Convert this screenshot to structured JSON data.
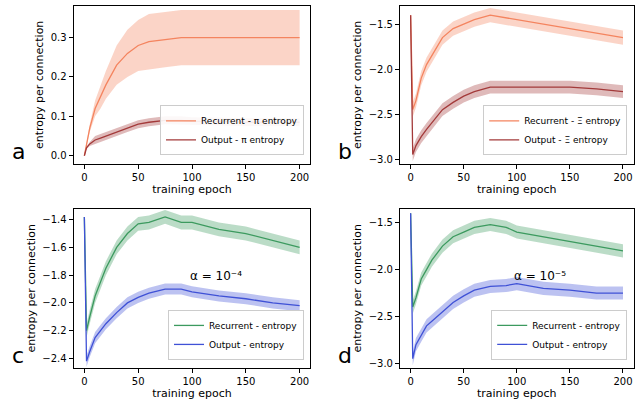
{
  "chart_data": [
    {
      "type": "line",
      "panel": "a",
      "xlabel": "training epoch",
      "ylabel": "entropy per connection",
      "x": [
        0,
        2,
        5,
        10,
        15,
        20,
        30,
        40,
        50,
        60,
        75,
        90,
        100,
        125,
        150,
        175,
        200
      ],
      "xlim": [
        -10,
        210
      ],
      "xticks": [
        0,
        50,
        100,
        150,
        200
      ],
      "ylim": [
        -0.02,
        0.38
      ],
      "yticks": [
        {
          "value": 0,
          "label": "0.0"
        },
        0.1,
        0.2,
        0.3
      ],
      "legend": "lower right",
      "series": [
        {
          "name": "Recurrent - π entropy",
          "color": "#f4845f",
          "values": [
            0,
            0.03,
            0.07,
            0.12,
            0.15,
            0.18,
            0.23,
            0.26,
            0.28,
            0.29,
            0.295,
            0.3,
            0.3,
            0.3,
            0.3,
            0.3,
            0.3
          ],
          "lower": [
            0,
            0.025,
            0.06,
            0.1,
            0.12,
            0.145,
            0.18,
            0.2,
            0.215,
            0.22,
            0.225,
            0.23,
            0.23,
            0.23,
            0.23,
            0.23,
            0.23
          ],
          "upper": [
            0,
            0.035,
            0.08,
            0.14,
            0.18,
            0.215,
            0.28,
            0.32,
            0.345,
            0.36,
            0.365,
            0.37,
            0.37,
            0.37,
            0.37,
            0.37,
            0.37
          ]
        },
        {
          "name": "Output - π entropy",
          "color": "#a33a3a",
          "values": [
            0,
            0.02,
            0.03,
            0.04,
            0.045,
            0.05,
            0.06,
            0.07,
            0.08,
            0.085,
            0.09,
            0.09,
            0.088,
            0.087,
            0.085,
            0.085,
            0.085
          ],
          "lower": [
            0,
            0.017,
            0.025,
            0.03,
            0.035,
            0.04,
            0.05,
            0.06,
            0.07,
            0.075,
            0.08,
            0.08,
            0.078,
            0.077,
            0.075,
            0.075,
            0.075
          ],
          "upper": [
            0,
            0.023,
            0.035,
            0.05,
            0.055,
            0.06,
            0.07,
            0.08,
            0.09,
            0.095,
            0.1,
            0.1,
            0.098,
            0.097,
            0.095,
            0.095,
            0.095
          ]
        }
      ]
    },
    {
      "type": "line",
      "panel": "b",
      "xlabel": "training epoch",
      "ylabel": "entropy per connection",
      "x": [
        0,
        2,
        5,
        10,
        15,
        20,
        30,
        40,
        50,
        60,
        75,
        90,
        100,
        125,
        150,
        175,
        200
      ],
      "xlim": [
        -10,
        210
      ],
      "xticks": [
        0,
        50,
        100,
        150,
        200
      ],
      "ylim": [
        -3.05,
        -1.3
      ],
      "yticks": [
        {
          "value": -3,
          "label": "−3.0"
        },
        {
          "value": -2.5,
          "label": "−2.5"
        },
        {
          "value": -2,
          "label": "−2.0"
        },
        {
          "value": -1.5,
          "label": "−1.5"
        }
      ],
      "legend": "lower right",
      "series": [
        {
          "name": "Recurrent - Ξ entropy",
          "color": "#f4845f",
          "values": [
            -1.4,
            -2.45,
            -2.35,
            -2.1,
            -1.95,
            -1.85,
            -1.65,
            -1.55,
            -1.5,
            -1.45,
            -1.4,
            -1.43,
            -1.45,
            -1.5,
            -1.55,
            -1.6,
            -1.65
          ],
          "lower": [
            -1.42,
            -2.53,
            -2.43,
            -2.18,
            -2.03,
            -1.93,
            -1.73,
            -1.63,
            -1.58,
            -1.53,
            -1.48,
            -1.51,
            -1.53,
            -1.58,
            -1.63,
            -1.68,
            -1.73
          ],
          "upper": [
            -1.38,
            -2.37,
            -2.27,
            -2.02,
            -1.87,
            -1.77,
            -1.57,
            -1.47,
            -1.42,
            -1.37,
            -1.32,
            -1.35,
            -1.37,
            -1.42,
            -1.47,
            -1.52,
            -1.57
          ]
        },
        {
          "name": "Output - Ξ entropy",
          "color": "#a33a3a",
          "values": [
            -1.4,
            -2.95,
            -2.85,
            -2.75,
            -2.67,
            -2.6,
            -2.45,
            -2.37,
            -2.3,
            -2.25,
            -2.2,
            -2.2,
            -2.2,
            -2.2,
            -2.2,
            -2.22,
            -2.25
          ],
          "lower": [
            -1.42,
            -3.02,
            -2.92,
            -2.82,
            -2.74,
            -2.67,
            -2.52,
            -2.44,
            -2.37,
            -2.32,
            -2.27,
            -2.27,
            -2.27,
            -2.27,
            -2.27,
            -2.29,
            -2.32
          ],
          "upper": [
            -1.38,
            -2.88,
            -2.78,
            -2.68,
            -2.6,
            -2.53,
            -2.38,
            -2.3,
            -2.23,
            -2.18,
            -2.13,
            -2.13,
            -2.13,
            -2.13,
            -2.13,
            -2.15,
            -2.18
          ]
        }
      ]
    },
    {
      "type": "line",
      "panel": "c",
      "xlabel": "training epoch",
      "ylabel": "entropy per connection",
      "annotation": "α = 10⁻⁴",
      "x": [
        0,
        2,
        5,
        10,
        15,
        20,
        30,
        40,
        50,
        60,
        75,
        90,
        100,
        125,
        150,
        175,
        200
      ],
      "xlim": [
        -10,
        210
      ],
      "xticks": [
        0,
        50,
        100,
        150,
        200
      ],
      "ylim": [
        -2.47,
        -1.32
      ],
      "yticks": [
        {
          "value": -2.4,
          "label": "−2.4"
        },
        {
          "value": -2.2,
          "label": "−2.2"
        },
        {
          "value": -2,
          "label": "−2.0"
        },
        {
          "value": -1.8,
          "label": "−1.8"
        },
        {
          "value": -1.6,
          "label": "−1.6"
        },
        {
          "value": -1.4,
          "label": "−1.4"
        }
      ],
      "legend": "lower right",
      "series": [
        {
          "name": "Recurrent - entropy",
          "color": "#3c9a5f",
          "values": [
            -1.38,
            -2.2,
            -2.1,
            -1.95,
            -1.85,
            -1.75,
            -1.6,
            -1.5,
            -1.43,
            -1.42,
            -1.38,
            -1.42,
            -1.42,
            -1.47,
            -1.5,
            -1.55,
            -1.6
          ],
          "lower": [
            -1.39,
            -2.25,
            -2.15,
            -2.0,
            -1.9,
            -1.8,
            -1.65,
            -1.55,
            -1.48,
            -1.47,
            -1.43,
            -1.47,
            -1.47,
            -1.52,
            -1.55,
            -1.6,
            -1.65
          ],
          "upper": [
            -1.37,
            -2.15,
            -2.05,
            -1.9,
            -1.8,
            -1.7,
            -1.55,
            -1.45,
            -1.38,
            -1.37,
            -1.33,
            -1.37,
            -1.37,
            -1.42,
            -1.45,
            -1.5,
            -1.55
          ]
        },
        {
          "name": "Output - entropy",
          "color": "#3f51d6",
          "values": [
            -1.38,
            -2.42,
            -2.35,
            -2.25,
            -2.2,
            -2.15,
            -2.07,
            -2.0,
            -1.96,
            -1.93,
            -1.9,
            -1.9,
            -1.92,
            -1.95,
            -1.97,
            -2.0,
            -2.02
          ],
          "lower": [
            -1.39,
            -2.46,
            -2.39,
            -2.29,
            -2.24,
            -2.19,
            -2.11,
            -2.04,
            -2.0,
            -1.97,
            -1.94,
            -1.94,
            -1.96,
            -1.99,
            -2.01,
            -2.04,
            -2.06
          ],
          "upper": [
            -1.37,
            -2.38,
            -2.31,
            -2.21,
            -2.16,
            -2.11,
            -2.03,
            -1.96,
            -1.92,
            -1.89,
            -1.86,
            -1.86,
            -1.88,
            -1.91,
            -1.93,
            -1.96,
            -1.98
          ]
        }
      ]
    },
    {
      "type": "line",
      "panel": "d",
      "xlabel": "training epoch",
      "ylabel": "entropy per connection",
      "annotation": "α = 10⁻⁵",
      "x": [
        0,
        2,
        5,
        10,
        15,
        20,
        30,
        40,
        50,
        60,
        75,
        90,
        100,
        125,
        150,
        175,
        200
      ],
      "xlim": [
        -10,
        210
      ],
      "xticks": [
        0,
        50,
        100,
        150,
        200
      ],
      "ylim": [
        -3.05,
        -1.35
      ],
      "yticks": [
        {
          "value": -3,
          "label": "−3.0"
        },
        {
          "value": -2.5,
          "label": "−2.5"
        },
        {
          "value": -2,
          "label": "−2.0"
        },
        {
          "value": -1.5,
          "label": "−1.5"
        }
      ],
      "legend": "lower right",
      "series": [
        {
          "name": "Recurrent - entropy",
          "color": "#3c9a5f",
          "values": [
            -1.4,
            -2.4,
            -2.3,
            -2.1,
            -2.0,
            -1.9,
            -1.75,
            -1.65,
            -1.6,
            -1.55,
            -1.52,
            -1.55,
            -1.6,
            -1.65,
            -1.7,
            -1.75,
            -1.8
          ],
          "lower": [
            -1.42,
            -2.47,
            -2.37,
            -2.17,
            -2.07,
            -1.97,
            -1.82,
            -1.72,
            -1.67,
            -1.62,
            -1.59,
            -1.62,
            -1.67,
            -1.72,
            -1.77,
            -1.82,
            -1.87
          ],
          "upper": [
            -1.38,
            -2.33,
            -2.23,
            -2.03,
            -1.93,
            -1.83,
            -1.68,
            -1.58,
            -1.53,
            -1.48,
            -1.45,
            -1.48,
            -1.53,
            -1.58,
            -1.63,
            -1.68,
            -1.73
          ]
        },
        {
          "name": "Output - entropy",
          "color": "#3f51d6",
          "values": [
            -1.4,
            -2.95,
            -2.8,
            -2.7,
            -2.6,
            -2.55,
            -2.45,
            -2.35,
            -2.28,
            -2.22,
            -2.18,
            -2.17,
            -2.15,
            -2.2,
            -2.22,
            -2.25,
            -2.25
          ],
          "lower": [
            -1.42,
            -3.02,
            -2.87,
            -2.77,
            -2.67,
            -2.62,
            -2.52,
            -2.42,
            -2.35,
            -2.29,
            -2.25,
            -2.24,
            -2.22,
            -2.27,
            -2.29,
            -2.32,
            -2.32
          ],
          "upper": [
            -1.38,
            -2.88,
            -2.73,
            -2.63,
            -2.53,
            -2.48,
            -2.38,
            -2.28,
            -2.21,
            -2.15,
            -2.11,
            -2.1,
            -2.08,
            -2.13,
            -2.15,
            -2.18,
            -2.18
          ]
        }
      ]
    }
  ]
}
